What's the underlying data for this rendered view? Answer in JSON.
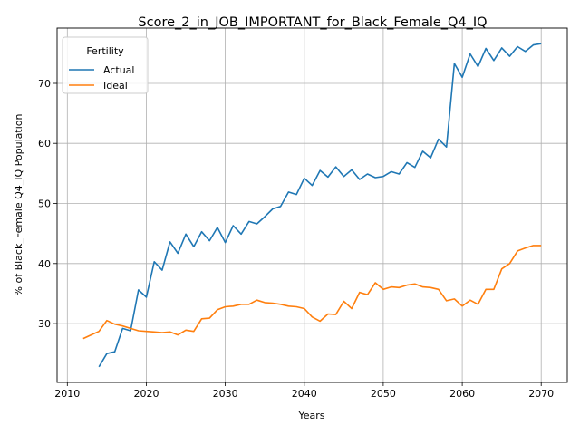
{
  "chart_data": {
    "type": "line",
    "title": "Score_2_in_JOB_IMPORTANT_for_Black_Female_Q4_IQ",
    "xlabel": "Years",
    "ylabel": "% of Black_Female Q4_IQ Population",
    "xlim": [
      2008.7,
      2073.3
    ],
    "ylim": [
      20.2,
      79.2
    ],
    "xticks": [
      2010,
      2020,
      2030,
      2040,
      2050,
      2060,
      2070
    ],
    "yticks": [
      30,
      40,
      50,
      60,
      70
    ],
    "grid": true,
    "legend": {
      "title": "Fertility",
      "position": "top-left"
    },
    "series": [
      {
        "name": "Actual",
        "color": "#1f77b4",
        "x": [
          2014,
          2015,
          2016,
          2017,
          2018,
          2019,
          2020,
          2021,
          2022,
          2023,
          2024,
          2025,
          2026,
          2027,
          2028,
          2029,
          2030,
          2031,
          2032,
          2033,
          2034,
          2035,
          2036,
          2037,
          2038,
          2039,
          2040,
          2041,
          2042,
          2043,
          2044,
          2045,
          2046,
          2047,
          2048,
          2049,
          2050,
          2051,
          2052,
          2053,
          2054,
          2055,
          2056,
          2057,
          2058,
          2059,
          2060,
          2061,
          2062,
          2063,
          2064,
          2065,
          2066,
          2067,
          2068,
          2069,
          2070
        ],
        "y": [
          22.8,
          25.0,
          25.3,
          29.2,
          28.8,
          35.6,
          34.4,
          40.3,
          38.9,
          43.6,
          41.7,
          44.9,
          42.8,
          45.3,
          43.8,
          46.0,
          43.5,
          46.3,
          44.9,
          47.0,
          46.6,
          47.8,
          49.1,
          49.5,
          51.9,
          51.5,
          54.2,
          53.0,
          55.5,
          54.4,
          56.1,
          54.5,
          55.6,
          54.0,
          54.9,
          54.3,
          54.5,
          55.3,
          54.9,
          56.8,
          56.0,
          58.7,
          57.6,
          60.7,
          59.4,
          73.3,
          71.0,
          74.9,
          72.8,
          75.8,
          73.8,
          75.9,
          74.5,
          76.1,
          75.3,
          76.4,
          76.6
        ]
      },
      {
        "name": "Ideal",
        "color": "#ff7f0e",
        "x": [
          2012,
          2013,
          2014,
          2015,
          2016,
          2017,
          2018,
          2019,
          2020,
          2021,
          2022,
          2023,
          2024,
          2025,
          2026,
          2027,
          2028,
          2029,
          2030,
          2031,
          2032,
          2033,
          2034,
          2035,
          2036,
          2037,
          2038,
          2039,
          2040,
          2041,
          2042,
          2043,
          2044,
          2045,
          2046,
          2047,
          2048,
          2049,
          2050,
          2051,
          2052,
          2053,
          2054,
          2055,
          2056,
          2057,
          2058,
          2059,
          2060,
          2061,
          2062,
          2063,
          2064,
          2065,
          2066,
          2067,
          2068,
          2069,
          2070
        ],
        "y": [
          27.5,
          28.1,
          28.7,
          30.5,
          29.9,
          29.6,
          29.2,
          28.8,
          28.7,
          28.6,
          28.5,
          28.6,
          28.1,
          28.9,
          28.7,
          30.8,
          30.9,
          32.3,
          32.8,
          32.9,
          33.2,
          33.2,
          33.9,
          33.5,
          33.4,
          33.2,
          32.9,
          32.8,
          32.5,
          31.1,
          30.4,
          31.6,
          31.5,
          33.7,
          32.5,
          35.2,
          34.8,
          36.8,
          35.7,
          36.1,
          36.0,
          36.4,
          36.6,
          36.1,
          36.0,
          35.7,
          33.8,
          34.1,
          32.9,
          33.9,
          33.2,
          35.7,
          35.7,
          39.1,
          40.0,
          42.1,
          42.6,
          43.0,
          43.0
        ]
      }
    ]
  }
}
